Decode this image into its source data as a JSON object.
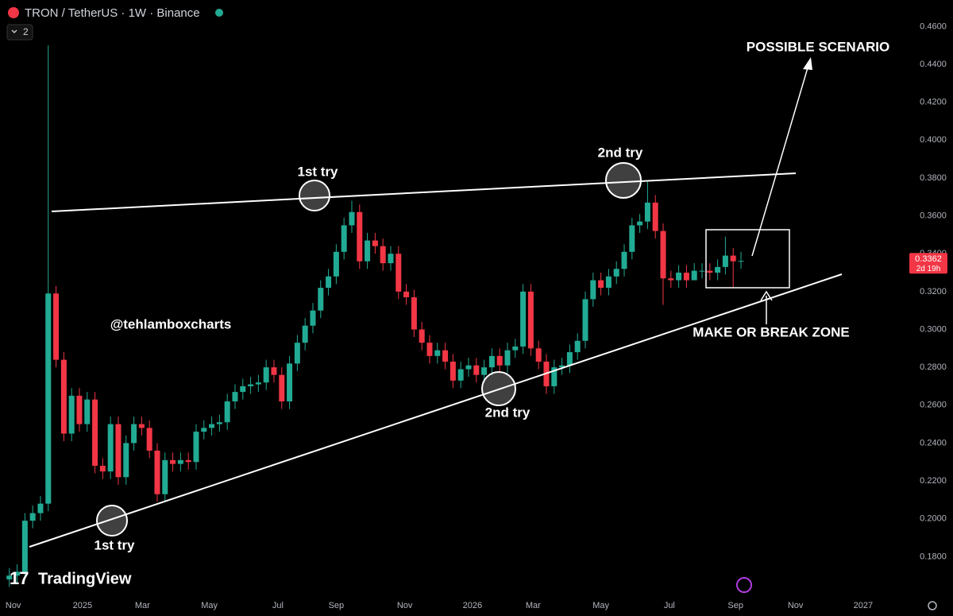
{
  "header": {
    "symbol": "TRON / TetherUS · 1W · Binance",
    "indicator_count": "2"
  },
  "branding": {
    "logo": "TradingView"
  },
  "chart_data": {
    "type": "candlestick",
    "up_color": "#22ab94",
    "down_color": "#f23645",
    "open": [
      0.168,
      0.17,
      0.172,
      0.199,
      0.203,
      0.208,
      0.319,
      0.284,
      0.245,
      0.265,
      0.25,
      0.263,
      0.228,
      0.225,
      0.25,
      0.222,
      0.24,
      0.25,
      0.248,
      0.236,
      0.213,
      0.231,
      0.229,
      0.231,
      0.23,
      0.246,
      0.248,
      0.25,
      0.251,
      0.262,
      0.267,
      0.27,
      0.271,
      0.272,
      0.28,
      0.276,
      0.262,
      0.282,
      0.293,
      0.302,
      0.31,
      0.322,
      0.328,
      0.341,
      0.355,
      0.362,
      0.336,
      0.347,
      0.344,
      0.335,
      0.34,
      0.32,
      0.317,
      0.3,
      0.293,
      0.286,
      0.289,
      0.283,
      0.273,
      0.279,
      0.281,
      0.276,
      0.28,
      0.286,
      0.281,
      0.289,
      0.291,
      0.32,
      0.29,
      0.283,
      0.27,
      0.28,
      0.281,
      0.288,
      0.294,
      0.316,
      0.326,
      0.322,
      0.328,
      0.332,
      0.341,
      0.355,
      0.357,
      0.367,
      0.352,
      0.327,
      0.326,
      0.33,
      0.326,
      0.331,
      0.331,
      0.33,
      0.333,
      0.339,
      0.336
    ],
    "high": [
      0.174,
      0.176,
      0.203,
      0.207,
      0.212,
      0.45,
      0.323,
      0.288,
      0.269,
      0.269,
      0.267,
      0.267,
      0.232,
      0.254,
      0.254,
      0.244,
      0.254,
      0.254,
      0.252,
      0.24,
      0.235,
      0.235,
      0.235,
      0.235,
      0.25,
      0.252,
      0.254,
      0.255,
      0.266,
      0.271,
      0.274,
      0.275,
      0.276,
      0.284,
      0.284,
      0.28,
      0.286,
      0.297,
      0.306,
      0.314,
      0.326,
      0.332,
      0.345,
      0.359,
      0.368,
      0.366,
      0.351,
      0.351,
      0.348,
      0.344,
      0.344,
      0.324,
      0.321,
      0.304,
      0.297,
      0.293,
      0.293,
      0.287,
      0.283,
      0.285,
      0.285,
      0.284,
      0.29,
      0.29,
      0.293,
      0.295,
      0.324,
      0.324,
      0.294,
      0.287,
      0.284,
      0.285,
      0.292,
      0.298,
      0.32,
      0.33,
      0.33,
      0.332,
      0.336,
      0.345,
      0.359,
      0.361,
      0.378,
      0.371,
      0.356,
      0.331,
      0.334,
      0.334,
      0.335,
      0.335,
      0.335,
      0.337,
      0.349,
      0.343,
      0.341
    ],
    "low": [
      0.164,
      0.166,
      0.168,
      0.195,
      0.199,
      0.204,
      0.28,
      0.241,
      0.241,
      0.246,
      0.246,
      0.224,
      0.221,
      0.221,
      0.218,
      0.218,
      0.236,
      0.244,
      0.232,
      0.209,
      0.209,
      0.225,
      0.225,
      0.226,
      0.226,
      0.242,
      0.244,
      0.246,
      0.247,
      0.258,
      0.263,
      0.266,
      0.267,
      0.268,
      0.272,
      0.258,
      0.258,
      0.278,
      0.289,
      0.298,
      0.306,
      0.318,
      0.324,
      0.337,
      0.351,
      0.332,
      0.332,
      0.34,
      0.331,
      0.331,
      0.316,
      0.313,
      0.296,
      0.289,
      0.282,
      0.282,
      0.279,
      0.269,
      0.269,
      0.275,
      0.272,
      0.272,
      0.276,
      0.277,
      0.277,
      0.285,
      0.287,
      0.286,
      0.279,
      0.266,
      0.266,
      0.276,
      0.277,
      0.284,
      0.29,
      0.312,
      0.318,
      0.318,
      0.324,
      0.328,
      0.337,
      0.351,
      0.353,
      0.348,
      0.313,
      0.322,
      0.322,
      0.322,
      0.327,
      0.327,
      0.326,
      0.326,
      0.329,
      0.322,
      0.332
    ],
    "close": [
      0.17,
      0.172,
      0.199,
      0.203,
      0.208,
      0.319,
      0.284,
      0.245,
      0.265,
      0.25,
      0.263,
      0.228,
      0.225,
      0.25,
      0.222,
      0.24,
      0.25,
      0.248,
      0.236,
      0.213,
      0.231,
      0.229,
      0.231,
      0.23,
      0.246,
      0.248,
      0.25,
      0.251,
      0.262,
      0.267,
      0.27,
      0.271,
      0.272,
      0.28,
      0.276,
      0.262,
      0.282,
      0.293,
      0.302,
      0.31,
      0.322,
      0.328,
      0.341,
      0.355,
      0.362,
      0.336,
      0.347,
      0.344,
      0.335,
      0.34,
      0.32,
      0.317,
      0.3,
      0.293,
      0.286,
      0.289,
      0.283,
      0.273,
      0.279,
      0.281,
      0.276,
      0.28,
      0.286,
      0.281,
      0.289,
      0.291,
      0.32,
      0.29,
      0.283,
      0.27,
      0.28,
      0.281,
      0.288,
      0.294,
      0.316,
      0.326,
      0.322,
      0.328,
      0.332,
      0.341,
      0.355,
      0.357,
      0.367,
      0.352,
      0.327,
      0.326,
      0.33,
      0.326,
      0.331,
      0.331,
      0.33,
      0.333,
      0.339,
      0.336,
      0.3362
    ],
    "last_price": 0.3362,
    "last_price_label": "0.3362",
    "countdown": "2d 19h",
    "ylim": [
      0.16,
      0.474
    ],
    "yticks": [
      {
        "value": 0.18,
        "label": "0.1800"
      },
      {
        "value": 0.2,
        "label": "0.2000"
      },
      {
        "value": 0.22,
        "label": "0.2200"
      },
      {
        "value": 0.24,
        "label": "0.2400"
      },
      {
        "value": 0.26,
        "label": "0.2600"
      },
      {
        "value": 0.28,
        "label": "0.2800"
      },
      {
        "value": 0.3,
        "label": "0.3000"
      },
      {
        "value": 0.32,
        "label": "0.3200"
      },
      {
        "value": 0.34,
        "label": "0.3400"
      },
      {
        "value": 0.36,
        "label": "0.3600"
      },
      {
        "value": 0.38,
        "label": "0.3800"
      },
      {
        "value": 0.4,
        "label": "0.4000"
      },
      {
        "value": 0.42,
        "label": "0.4200"
      },
      {
        "value": 0.44,
        "label": "0.4400"
      },
      {
        "value": 0.46,
        "label": "0.4600"
      }
    ],
    "xlim": [
      -1.2,
      114.1
    ],
    "xticks": [
      {
        "value": 0.5,
        "label": "Nov"
      },
      {
        "value": 9.4,
        "label": "2025"
      },
      {
        "value": 17.1,
        "label": "Mar"
      },
      {
        "value": 25.7,
        "label": "May"
      },
      {
        "value": 34.5,
        "label": "Jul"
      },
      {
        "value": 42,
        "label": "Sep"
      },
      {
        "value": 50.8,
        "label": "Nov"
      },
      {
        "value": 59.5,
        "label": "2026"
      },
      {
        "value": 67.3,
        "label": "Mar"
      },
      {
        "value": 76,
        "label": "May"
      },
      {
        "value": 84.8,
        "label": "Jul"
      },
      {
        "value": 93.3,
        "label": "Sep"
      },
      {
        "value": 101,
        "label": "Nov"
      },
      {
        "value": 109.7,
        "label": "2027"
      }
    ],
    "grid": false,
    "annotations": {
      "first_try_top": "1st try",
      "second_try_top": "2nd try",
      "first_try_bottom": "1st try",
      "second_try_bottom": "2nd try",
      "scenario": "POSSIBLE SCENARIO",
      "zone": "MAKE OR BREAK ZONE",
      "handle": "@tehlamboxcharts"
    }
  }
}
